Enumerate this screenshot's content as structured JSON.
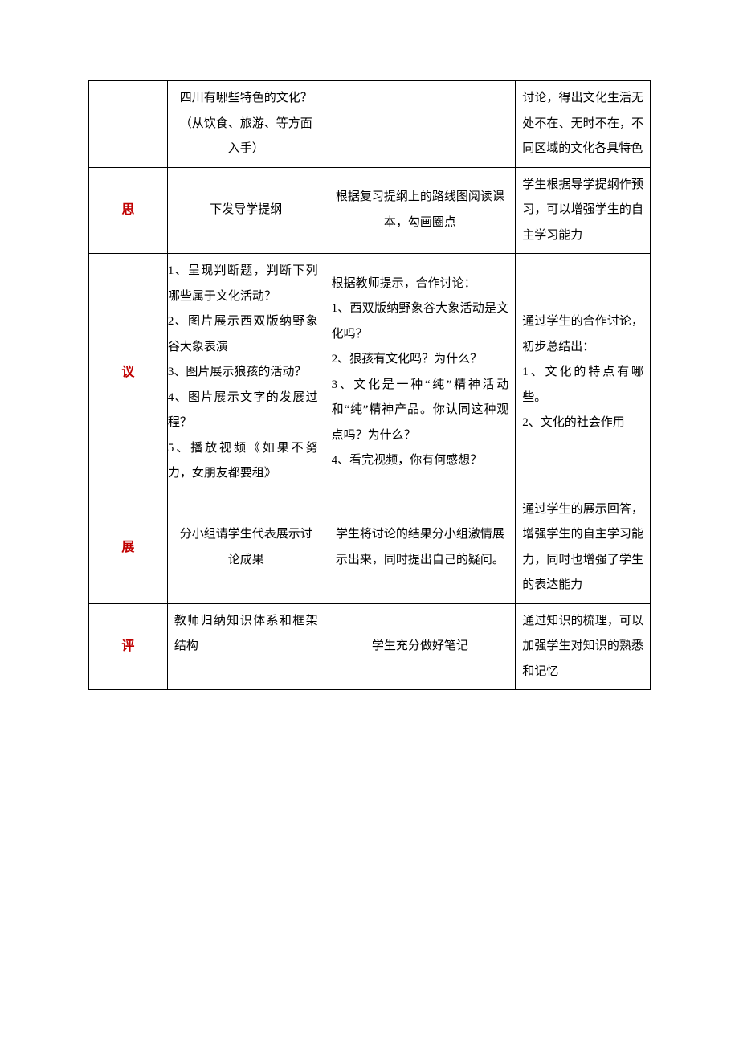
{
  "colors": {
    "stage_text": "#c00000",
    "border": "#000000",
    "text": "#000000",
    "background": "#ffffff"
  },
  "typography": {
    "base_fontsize": 15,
    "stage_fontsize": 16,
    "line_height": 2.1,
    "font_family": "SimSun"
  },
  "rows": [
    {
      "stage": "",
      "teacher": "四川有哪些特色的文化？（从饮食、旅游、等方面入手）",
      "student": "",
      "intent": "讨论，得出文化生活无处不在、无时不在，不同区域的文化各具特色"
    },
    {
      "stage": "思",
      "teacher": "下发导学提纲",
      "student": "根据复习提纲上的路线图阅读课本，勾画圈点",
      "intent": "学生根据导学提纲作预习，可以增强学生的自主学习能力"
    },
    {
      "stage": "议",
      "teacher": "1、呈现判断题，判断下列哪些属于文化活动？\n2、图片展示西双版纳野象谷大象表演\n3、图片展示狼孩的活动？\n4、图片展示文字的发展过程？\n5、播放视频《如果不努力，女朋友都要租》",
      "student": "根据教师提示，合作讨论：\n1、西双版纳野象谷大象活动是文化吗？\n2、狼孩有文化吗？为什么？\n3、文化是一种“纯”精神活动和“纯”精神产品。你认同这种观点吗？为什么？\n4、看完视频，你有何感想？",
      "intent": "通过学生的合作讨论，初步总结出：\n1、文化的特点有哪些。\n2、文化的社会作用"
    },
    {
      "stage": "展",
      "teacher": "分小组请学生代表展示讨论成果",
      "student": "学生将讨论的结果分小组激情展示出来，同时提出自己的疑问。",
      "intent": "通过学生的展示回答，增强学生的自主学习能力，同时也增强了学生的表达能力"
    },
    {
      "stage": "评",
      "teacher": "教师归纳知识体系和框架结构",
      "student": "学生充分做好笔记",
      "intent": "通过知识的梳理，可以加强学生对知识的熟悉和记忆"
    }
  ]
}
